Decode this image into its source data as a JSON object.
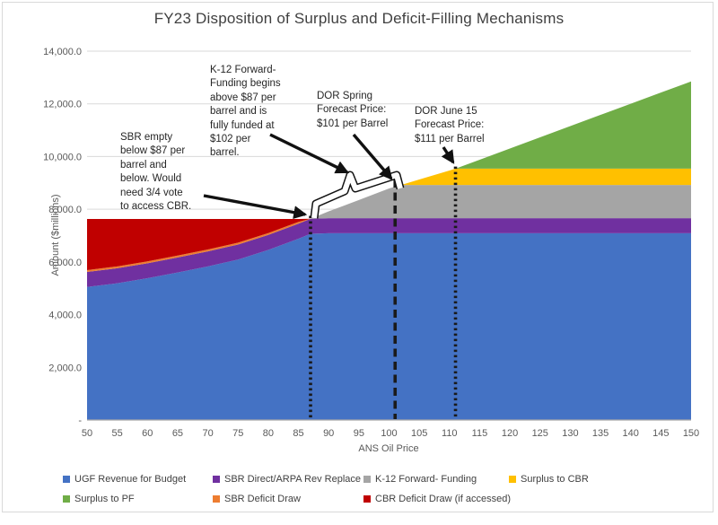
{
  "title": "FY23 Disposition of Surplus and Deficit-Filling Mechanisms",
  "axes": {
    "x_title": "ANS Oil Price",
    "y_title": "Amount ($millions)"
  },
  "annotations": {
    "sbr_note": "SBR empty\nbelow $87 per\nbarrel and\nbelow. Would\nneed 3/4 vote\nto access CBR.",
    "k12_note": "K-12 Forward-\nFunding begins\nabove $87 per\nbarrel and is\nfully funded at\n$102 per\nbarrel.",
    "dor_spring_note": "DOR Spring\nForecast Price:\n$101 per Barrel",
    "dor_june_note": "DOR June 15\nForecast Price:\n$111 per Barrel"
  },
  "legend": {
    "items": [
      {
        "label": "UGF Revenue for Budget",
        "color": "#4472C4"
      },
      {
        "label": "SBR Direct/ARPA Rev Replace",
        "color": "#7030A0"
      },
      {
        "label": "K-12 Forward- Funding",
        "color": "#A5A5A5"
      },
      {
        "label": "Surplus to CBR",
        "color": "#FFC000"
      },
      {
        "label": "Surplus to PF",
        "color": "#70AD47"
      },
      {
        "label": "SBR Deficit Draw",
        "color": "#ED7D31"
      },
      {
        "label": "CBR Deficit Draw (if accessed)",
        "color": "#C00000"
      }
    ]
  },
  "chart_data": {
    "type": "area",
    "stacked": true,
    "title": "FY23 Disposition of Surplus and Deficit-Filling Mechanisms",
    "xlabel": "ANS Oil Price",
    "ylabel": "Amount ($millions)",
    "xlim": [
      50,
      150
    ],
    "ylim": [
      0,
      14000
    ],
    "grid": "horizontal",
    "legend_position": "bottom",
    "x": [
      50,
      55,
      60,
      65,
      70,
      75,
      80,
      85,
      87,
      90,
      95,
      100,
      102,
      105,
      110,
      111,
      115,
      120,
      125,
      130,
      135,
      140,
      145,
      150
    ],
    "series": [
      {
        "id": "ugf",
        "name": "UGF Revenue for Budget",
        "color": "#4472C4",
        "values": [
          5050,
          5190,
          5380,
          5600,
          5830,
          6090,
          6455,
          6880,
          7070,
          7090,
          7090,
          7090,
          7090,
          7090,
          7090,
          7090,
          7090,
          7090,
          7090,
          7090,
          7090,
          7090,
          7090,
          7090
        ]
      },
      {
        "id": "sbr_direct",
        "name": "SBR Direct/ARPA Rev Replace",
        "color": "#7030A0",
        "values": [
          570,
          570,
          570,
          570,
          570,
          570,
          570,
          570,
          570,
          570,
          570,
          570,
          570,
          570,
          570,
          570,
          570,
          570,
          570,
          570,
          570,
          570,
          570,
          570
        ]
      },
      {
        "id": "sbr_deficit",
        "name": "SBR Deficit Draw",
        "color": "#ED7D31",
        "values": [
          70,
          70,
          70,
          70,
          70,
          70,
          70,
          70,
          0,
          0,
          0,
          0,
          0,
          0,
          0,
          0,
          0,
          0,
          0,
          0,
          0,
          0,
          0,
          0
        ]
      },
      {
        "id": "cbr_deficit",
        "name": "CBR Deficit Draw (if accessed)",
        "color": "#C00000",
        "values": [
          1940,
          1800,
          1610,
          1390,
          1160,
          900,
          535,
          110,
          0,
          0,
          0,
          0,
          0,
          0,
          0,
          0,
          0,
          0,
          0,
          0,
          0,
          0,
          0,
          0
        ]
      },
      {
        "id": "k12",
        "name": "K-12 Forward- Funding",
        "color": "#A5A5A5",
        "values": [
          0,
          0,
          0,
          0,
          0,
          0,
          0,
          0,
          0,
          260,
          690,
          1130,
          1260,
          1260,
          1260,
          1260,
          1260,
          1260,
          1260,
          1260,
          1260,
          1260,
          1260,
          1260
        ]
      },
      {
        "id": "cbr_surplus",
        "name": "Surplus to CBR",
        "color": "#FFC000",
        "values": [
          0,
          0,
          0,
          0,
          0,
          0,
          0,
          0,
          0,
          0,
          0,
          0,
          0,
          210,
          550,
          620,
          620,
          620,
          620,
          620,
          620,
          620,
          620,
          620
        ]
      },
      {
        "id": "pf_surplus",
        "name": "Surplus to PF",
        "color": "#70AD47",
        "values": [
          0,
          0,
          0,
          0,
          0,
          0,
          0,
          0,
          0,
          0,
          0,
          0,
          0,
          0,
          0,
          0,
          340,
          765,
          1190,
          1615,
          2040,
          2465,
          2890,
          3310
        ]
      }
    ],
    "x_ticks": [
      "50",
      "55",
      "60",
      "65",
      "70",
      "75",
      "80",
      "85",
      "90",
      "95",
      "100",
      "105",
      "110",
      "115",
      "120",
      "125",
      "130",
      "135",
      "140",
      "145",
      "150"
    ],
    "y_ticks": [
      {
        "v": 0,
        "label": "-"
      },
      {
        "v": 2000,
        "label": "2,000.0"
      },
      {
        "v": 4000,
        "label": "4,000.0"
      },
      {
        "v": 6000,
        "label": "6,000.0"
      },
      {
        "v": 8000,
        "label": "8,000.0"
      },
      {
        "v": 10000,
        "label": "10,000.0"
      },
      {
        "v": 12000,
        "label": "12,000.0"
      },
      {
        "v": 14000,
        "label": "14,000.0"
      }
    ],
    "markers": [
      {
        "x": 87,
        "style": "dotted",
        "top": 7750,
        "meaning": "SBR empty threshold $87/bbl"
      },
      {
        "x": 101,
        "style": "dashed",
        "top": 9130,
        "meaning": "DOR Spring Forecast Price $101/bbl"
      },
      {
        "x": 111,
        "style": "dotted",
        "top": 9620,
        "meaning": "DOR June 15 Forecast Price $111/bbl"
      }
    ]
  }
}
